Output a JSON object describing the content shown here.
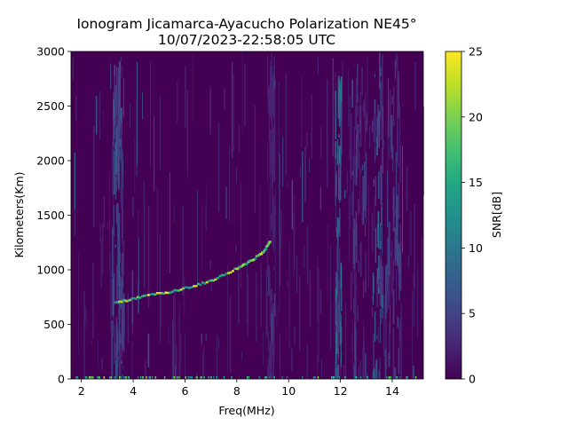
{
  "chart_data": {
    "type": "heatmap",
    "title": "Ionogram Jicamarca-Ayacucho Polarization NE45°",
    "subtitle": "10/07/2023-22:58:05 UTC",
    "xlabel": "Freq(MHz)",
    "ylabel": "Kilometers(Km)",
    "xlim": [
      1.6,
      15.2
    ],
    "ylim": [
      0,
      3000
    ],
    "x_ticks": [
      2,
      4,
      6,
      8,
      10,
      12,
      14
    ],
    "y_ticks": [
      0,
      500,
      1000,
      1500,
      2000,
      2500,
      3000
    ],
    "colorbar": {
      "label": "SNR[dB]",
      "range": [
        0,
        25
      ],
      "ticks": [
        0,
        5,
        10,
        15,
        20,
        25
      ],
      "colormap": "viridis"
    },
    "trace": {
      "name": "echo trace",
      "freq_mhz": [
        3.3,
        3.6,
        4.0,
        4.5,
        5.0,
        5.5,
        6.0,
        6.5,
        7.0,
        7.5,
        8.0,
        8.3,
        8.6,
        8.9,
        9.1,
        9.3
      ],
      "range_km": [
        700,
        710,
        730,
        760,
        780,
        800,
        830,
        860,
        900,
        950,
        1010,
        1050,
        1090,
        1140,
        1190,
        1260
      ]
    },
    "noise_bands_mhz": [
      {
        "center": 3.3,
        "width": 0.15,
        "level": 6
      },
      {
        "center": 3.5,
        "width": 0.12,
        "level": 5
      },
      {
        "center": 9.3,
        "width": 0.15,
        "level": 3
      },
      {
        "center": 11.9,
        "width": 0.12,
        "level": 8
      },
      {
        "center": 13.4,
        "width": 0.2,
        "level": 7
      },
      {
        "center": 12.7,
        "width": 0.3,
        "level": 4
      },
      {
        "center": 14.0,
        "width": 0.3,
        "level": 4
      }
    ],
    "colors": {
      "viridis": [
        "#440154",
        "#482475",
        "#414487",
        "#355f8d",
        "#2a788e",
        "#21918c",
        "#22a884",
        "#44bf70",
        "#7ad151",
        "#bddf26",
        "#fde725"
      ],
      "background": "#440154"
    }
  }
}
